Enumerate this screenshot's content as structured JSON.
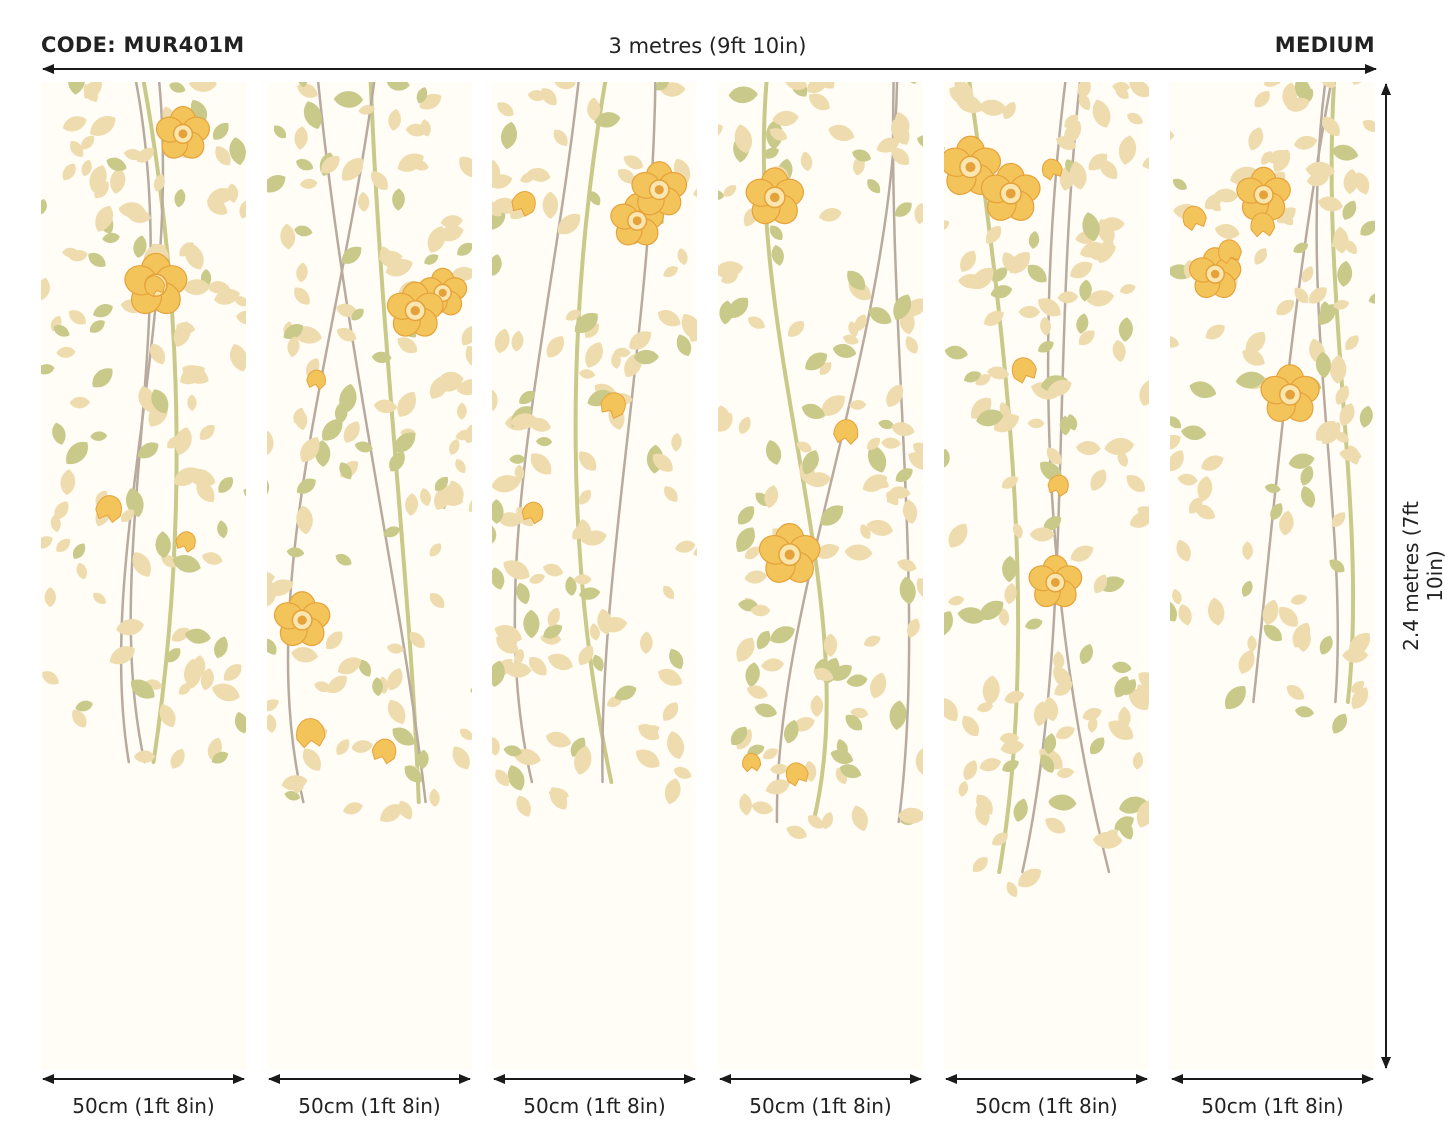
{
  "header": {
    "code": "CODE: MUR401M",
    "width_label": "3 metres (9ft 10in)",
    "size": "MEDIUM"
  },
  "height_label": "2.4 metres (7ft 10in)",
  "panels": [
    {
      "label": "50cm (1ft 8in)"
    },
    {
      "label": "50cm (1ft 8in)"
    },
    {
      "label": "50cm (1ft 8in)"
    },
    {
      "label": "50cm (1ft 8in)"
    },
    {
      "label": "50cm (1ft 8in)"
    },
    {
      "label": "50cm (1ft 8in)"
    }
  ],
  "colors": {
    "background": "#fffdf5",
    "leaf_beige": "#efdcae",
    "leaf_green": "#c9c98a",
    "stem": "#b8aa9e",
    "flower": "#f3c45a",
    "flower_center": "#e6a23a",
    "arrow": "#1a1a1a"
  }
}
